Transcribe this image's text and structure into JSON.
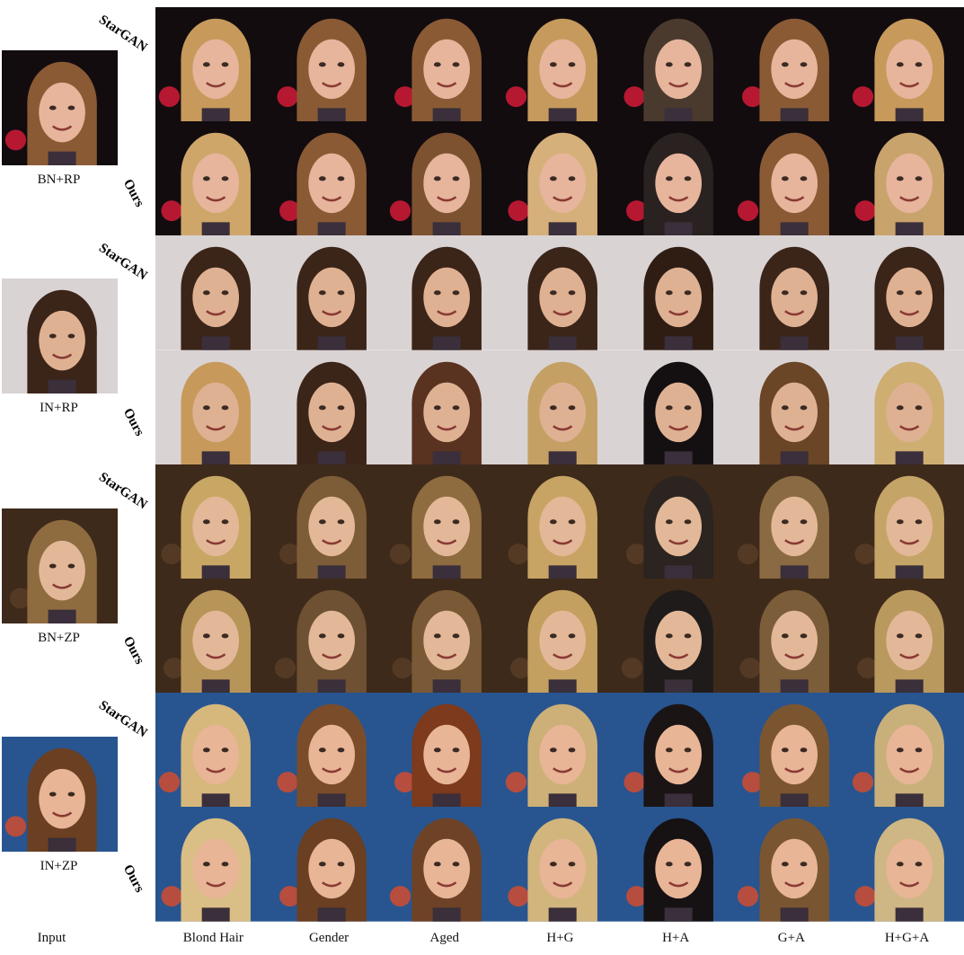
{
  "method_labels": {
    "stargan": "StarGAN",
    "ours": "Ours"
  },
  "columns": [
    "Blond Hair",
    "Gender",
    "Aged",
    "H+G",
    "H+A",
    "G+A",
    "H+G+A"
  ],
  "input_label": "Input",
  "groups": [
    {
      "setting": "BN+RP",
      "bg": "#120c0f",
      "accent": "#e01b3a",
      "hair": "#8a5a34",
      "skin": "#e6b59c",
      "stargan_hair": [
        "#c79a5b",
        "#8a5a34",
        "#8a5a34",
        "#c59a5c",
        "#4a3a2e",
        "#8a5a34",
        "#c79a5b"
      ],
      "ours_hair": [
        "#cfa66a",
        "#8a5a34",
        "#7d5230",
        "#d6b07a",
        "#2a2220",
        "#8a5a34",
        "#c9a36c"
      ]
    },
    {
      "setting": "IN+RP",
      "bg": "#d9d3d3",
      "accent": "#d9d3d3",
      "hair": "#3b2418",
      "skin": "#dfb193",
      "stargan_hair": [
        "#3b2418",
        "#3b2418",
        "#3b2418",
        "#3b2418",
        "#2f1d14",
        "#3b2418",
        "#3b2418"
      ],
      "ours_hair": [
        "#c79a5b",
        "#3b2418",
        "#5a3220",
        "#c4a064",
        "#141011",
        "#6a4526",
        "#cfae72"
      ]
    },
    {
      "setting": "BN+ZP",
      "bg": "#3e2a1a",
      "accent": "#5a3e28",
      "hair": "#8f6b40",
      "skin": "#e2b898",
      "stargan_hair": [
        "#c8a765",
        "#7d5c38",
        "#8f6b40",
        "#c7a464",
        "#2b2420",
        "#8a6a42",
        "#c5a467"
      ],
      "ours_hair": [
        "#b79559",
        "#6e5032",
        "#7a5a36",
        "#c3a060",
        "#1f1b1a",
        "#7c5d3a",
        "#b9995e"
      ]
    },
    {
      "setting": "IN+ZP",
      "bg": "#28558f",
      "accent": "#d94b2b",
      "hair": "#6a3f22",
      "skin": "#e8b596",
      "stargan_hair": [
        "#d6b77c",
        "#7a4c2a",
        "#7d3a1c",
        "#cdb077",
        "#1b1415",
        "#7b5530",
        "#c9b07a"
      ],
      "ours_hair": [
        "#d9be86",
        "#6a3f22",
        "#6e4226",
        "#d1b57d",
        "#161113",
        "#7a5532",
        "#cfb685"
      ]
    }
  ],
  "colors": {
    "page_bg": "#ffffff",
    "caption_text": "#111111"
  }
}
